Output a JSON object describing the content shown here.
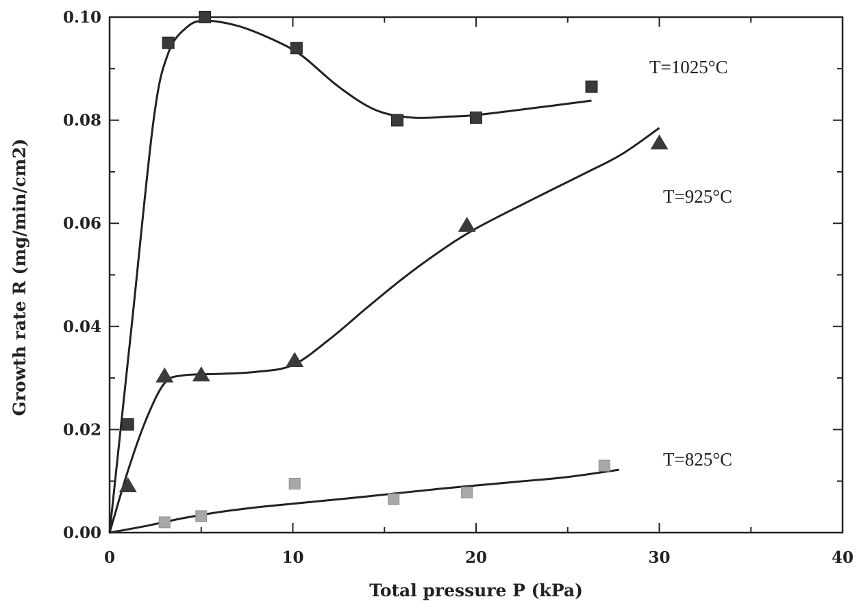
{
  "chart_data": {
    "type": "scatter",
    "title": "",
    "xlabel": "Total pressure P (kPa)",
    "ylabel": "Growth rate R (mg/min/cm2)",
    "xlim": [
      0,
      40
    ],
    "ylim": [
      0,
      0.1
    ],
    "x_ticks": [
      "0",
      "10",
      "20",
      "30",
      "40"
    ],
    "y_ticks": [
      "0.00",
      "0.02",
      "0.04",
      "0.06",
      "0.08",
      "0.10"
    ],
    "grid": false,
    "legend": "none",
    "series": [
      {
        "name": "T=1025°C",
        "marker": "square",
        "color": "#3a3a3a",
        "points": [
          [
            1,
            0.021
          ],
          [
            3.2,
            0.095
          ],
          [
            5.2,
            0.1
          ],
          [
            10.2,
            0.094
          ],
          [
            15.7,
            0.08
          ],
          [
            20,
            0.0805
          ],
          [
            26.3,
            0.0865
          ]
        ],
        "fit": [
          [
            0,
            0
          ],
          [
            1.2,
            0.04
          ],
          [
            2.4,
            0.08
          ],
          [
            3.2,
            0.093
          ],
          [
            4.2,
            0.098
          ],
          [
            5.2,
            0.0993
          ],
          [
            7,
            0.0983
          ],
          [
            9,
            0.0955
          ],
          [
            10.5,
            0.0925
          ],
          [
            12.5,
            0.0865
          ],
          [
            14.5,
            0.082
          ],
          [
            16.5,
            0.0805
          ],
          [
            18.5,
            0.0807
          ],
          [
            20,
            0.081
          ],
          [
            23,
            0.0823
          ],
          [
            26.3,
            0.0838
          ]
        ]
      },
      {
        "name": "T=925°C",
        "marker": "triangle",
        "color": "#3a3a3a",
        "points": [
          [
            1,
            0.009
          ],
          [
            3,
            0.0303
          ],
          [
            5,
            0.0305
          ],
          [
            10.1,
            0.0333
          ],
          [
            19.5,
            0.0595
          ],
          [
            30,
            0.0755
          ]
        ],
        "fit": [
          [
            0,
            0
          ],
          [
            1,
            0.012
          ],
          [
            2,
            0.022
          ],
          [
            3,
            0.029
          ],
          [
            4,
            0.0305
          ],
          [
            6,
            0.0308
          ],
          [
            8,
            0.0312
          ],
          [
            10,
            0.0325
          ],
          [
            12,
            0.0375
          ],
          [
            14,
            0.0435
          ],
          [
            16,
            0.0493
          ],
          [
            18,
            0.0545
          ],
          [
            20,
            0.059
          ],
          [
            23,
            0.0645
          ],
          [
            26,
            0.0698
          ],
          [
            28,
            0.0735
          ],
          [
            30,
            0.0785
          ]
        ]
      },
      {
        "name": "T=825°C",
        "marker": "square-light",
        "color": "#a8a8a8",
        "points": [
          [
            3,
            0.002
          ],
          [
            5,
            0.0032
          ],
          [
            10.1,
            0.0095
          ],
          [
            15.5,
            0.0065
          ],
          [
            19.5,
            0.0078
          ],
          [
            27,
            0.013
          ]
        ],
        "fit": [
          [
            0,
            0
          ],
          [
            2,
            0.0013
          ],
          [
            4,
            0.0028
          ],
          [
            6,
            0.004
          ],
          [
            8,
            0.0049
          ],
          [
            10,
            0.0056
          ],
          [
            14,
            0.007
          ],
          [
            18,
            0.0085
          ],
          [
            22,
            0.0098
          ],
          [
            25,
            0.0108
          ],
          [
            27.8,
            0.0122
          ]
        ]
      }
    ]
  }
}
